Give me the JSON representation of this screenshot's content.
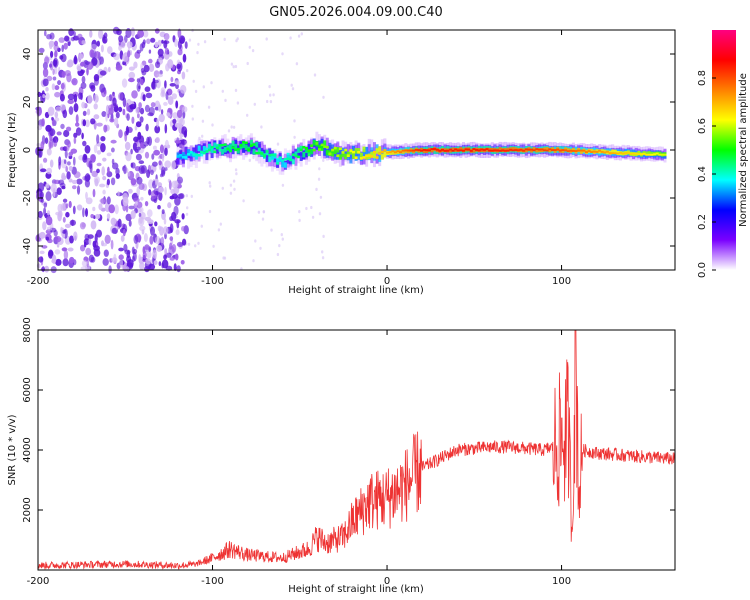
{
  "title": "GN05.2026.004.09.00.C40",
  "colors": {
    "snr_line": "#ee3333",
    "frame": "#000000",
    "scatter": "#7722dd",
    "background": "#ffffff"
  },
  "chart_data": [
    {
      "type": "heatmap",
      "title": "GN05.2026.004.09.00.C40",
      "xlabel": "Height of straight line (km)",
      "ylabel": "Frequency (Hz)",
      "xlim": [
        -200,
        165
      ],
      "ylim": [
        -50,
        50
      ],
      "xticks": [
        -200,
        -100,
        0,
        100
      ],
      "yticks": [
        -40,
        -20,
        0,
        20,
        40
      ],
      "colorbar": {
        "label": "Normalized spectral amplitude",
        "range": [
          0,
          1
        ],
        "ticks": [
          0.0,
          0.2,
          0.4,
          0.6,
          0.8
        ],
        "colormap": [
          "#ffffff",
          "#7a00ff",
          "#0000ff",
          "#00ffff",
          "#00ff00",
          "#ffff00",
          "#ff8000",
          "#ff0000",
          "#ff0080"
        ]
      },
      "noise_region_x": [
        -200,
        -115
      ],
      "ridge": {
        "x": [
          -120,
          -100,
          -80,
          -60,
          -40,
          -25,
          0,
          20,
          60,
          100,
          160
        ],
        "center_freq": [
          -3,
          0,
          2,
          -5,
          2,
          -2,
          -1,
          0,
          0,
          0,
          -2
        ],
        "amplitude": [
          0.35,
          0.45,
          0.5,
          0.4,
          0.55,
          0.6,
          0.7,
          0.85,
          0.85,
          0.8,
          0.6
        ]
      }
    },
    {
      "type": "line",
      "title": "",
      "xlabel": "Height of straight line (km)",
      "ylabel": "SNR (10 * v/v)",
      "xlim": [
        -200,
        165
      ],
      "ylim": [
        0,
        8000
      ],
      "xticks": [
        -200,
        -100,
        0,
        100
      ],
      "yticks": [
        2000,
        4000,
        6000,
        8000
      ],
      "series": [
        {
          "name": "SNR",
          "x": [
            -200,
            -150,
            -120,
            -110,
            -100,
            -90,
            -80,
            -60,
            -45,
            -40,
            -35,
            -25,
            -20,
            -10,
            0,
            10,
            20,
            30,
            40,
            50,
            60,
            70,
            80,
            90,
            95,
            100,
            104,
            106,
            108,
            110,
            112,
            120,
            140,
            165
          ],
          "values": [
            150,
            200,
            150,
            180,
            400,
            700,
            500,
            400,
            700,
            1100,
            900,
            1100,
            1600,
            2300,
            2400,
            2800,
            3400,
            3700,
            4000,
            4050,
            4100,
            4100,
            4050,
            4000,
            4100,
            4300,
            4700,
            1200,
            7500,
            2500,
            4000,
            3900,
            3800,
            3700
          ]
        }
      ]
    }
  ]
}
